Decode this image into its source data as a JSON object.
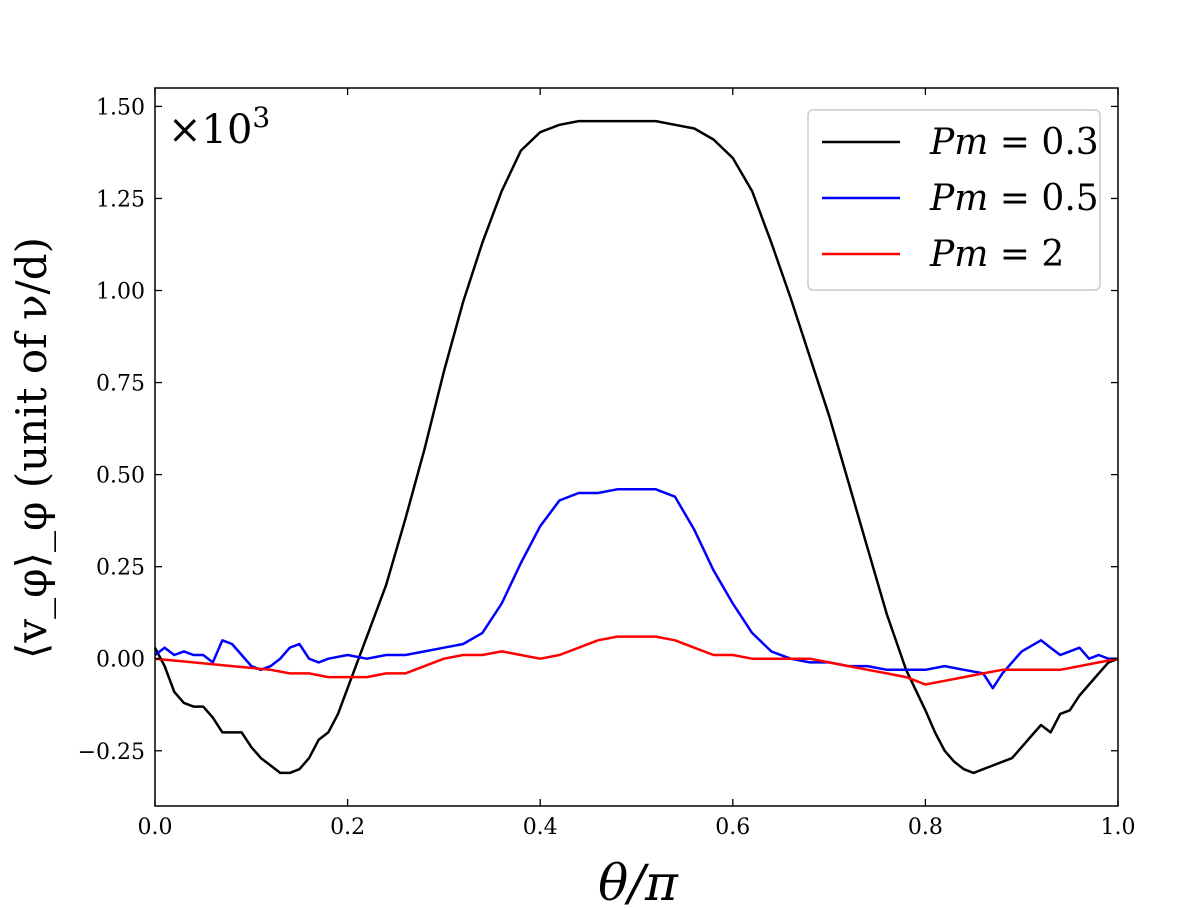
{
  "chart_data": {
    "type": "line",
    "xlabel": "θ/π",
    "ylabel": "⟨v_φ⟩_φ (unit of ν/d)",
    "ylabel_parts": {
      "v": "v",
      "sub_phi": "φ",
      "outer_sub": "φ",
      "text": " (unit of ν/d)"
    },
    "multiplier": "×10",
    "multiplier_exp": "3",
    "xlim": [
      0.0,
      1.0
    ],
    "ylim": [
      -0.4,
      1.55
    ],
    "xticks": [
      0.0,
      0.2,
      0.4,
      0.6,
      0.8,
      1.0
    ],
    "xtick_labels": [
      "0.0",
      "0.2",
      "0.4",
      "0.6",
      "0.8",
      "1.0"
    ],
    "yticks": [
      -0.25,
      0.0,
      0.25,
      0.5,
      0.75,
      1.0,
      1.25,
      1.5
    ],
    "ytick_labels": [
      "−0.25",
      "0.00",
      "0.25",
      "0.50",
      "0.75",
      "1.00",
      "1.25",
      "1.50"
    ],
    "legend_position": "top-right",
    "series": [
      {
        "name": "Pm = 0.3",
        "legend_label": "Pm",
        "legend_value": "0.3",
        "color": "#000000",
        "x": [
          0.0,
          0.01,
          0.02,
          0.03,
          0.04,
          0.05,
          0.06,
          0.07,
          0.08,
          0.09,
          0.1,
          0.11,
          0.12,
          0.13,
          0.14,
          0.15,
          0.16,
          0.17,
          0.18,
          0.19,
          0.2,
          0.21,
          0.22,
          0.24,
          0.26,
          0.28,
          0.3,
          0.32,
          0.34,
          0.36,
          0.38,
          0.4,
          0.42,
          0.44,
          0.46,
          0.48,
          0.5,
          0.52,
          0.54,
          0.56,
          0.58,
          0.6,
          0.62,
          0.64,
          0.66,
          0.68,
          0.7,
          0.72,
          0.74,
          0.76,
          0.78,
          0.8,
          0.81,
          0.82,
          0.83,
          0.84,
          0.85,
          0.86,
          0.87,
          0.88,
          0.89,
          0.9,
          0.91,
          0.92,
          0.93,
          0.94,
          0.95,
          0.96,
          0.97,
          0.98,
          0.99,
          1.0
        ],
        "y": [
          0.03,
          -0.02,
          -0.09,
          -0.12,
          -0.13,
          -0.13,
          -0.16,
          -0.2,
          -0.2,
          -0.2,
          -0.24,
          -0.27,
          -0.29,
          -0.31,
          -0.31,
          -0.3,
          -0.27,
          -0.22,
          -0.2,
          -0.15,
          -0.08,
          -0.01,
          0.06,
          0.2,
          0.38,
          0.57,
          0.78,
          0.97,
          1.13,
          1.27,
          1.38,
          1.43,
          1.45,
          1.46,
          1.46,
          1.46,
          1.46,
          1.46,
          1.45,
          1.44,
          1.41,
          1.36,
          1.27,
          1.13,
          0.98,
          0.82,
          0.66,
          0.48,
          0.3,
          0.12,
          -0.03,
          -0.14,
          -0.2,
          -0.25,
          -0.28,
          -0.3,
          -0.31,
          -0.3,
          -0.29,
          -0.28,
          -0.27,
          -0.24,
          -0.21,
          -0.18,
          -0.2,
          -0.15,
          -0.14,
          -0.1,
          -0.07,
          -0.04,
          -0.01,
          0.0
        ]
      },
      {
        "name": "Pm = 0.5",
        "legend_label": "Pm",
        "legend_value": "0.5",
        "color": "#0000ff",
        "x": [
          0.0,
          0.01,
          0.02,
          0.03,
          0.04,
          0.05,
          0.06,
          0.07,
          0.08,
          0.09,
          0.1,
          0.11,
          0.12,
          0.13,
          0.14,
          0.15,
          0.16,
          0.17,
          0.18,
          0.2,
          0.22,
          0.24,
          0.26,
          0.28,
          0.3,
          0.32,
          0.34,
          0.36,
          0.38,
          0.4,
          0.42,
          0.44,
          0.46,
          0.48,
          0.5,
          0.52,
          0.54,
          0.56,
          0.58,
          0.6,
          0.62,
          0.64,
          0.66,
          0.68,
          0.7,
          0.72,
          0.74,
          0.76,
          0.78,
          0.8,
          0.82,
          0.84,
          0.86,
          0.87,
          0.88,
          0.9,
          0.92,
          0.93,
          0.94,
          0.95,
          0.96,
          0.97,
          0.98,
          0.99,
          1.0
        ],
        "y": [
          0.01,
          0.03,
          0.01,
          0.02,
          0.01,
          0.01,
          -0.01,
          0.05,
          0.04,
          0.01,
          -0.02,
          -0.03,
          -0.02,
          0.0,
          0.03,
          0.04,
          0.0,
          -0.01,
          0.0,
          0.01,
          0.0,
          0.01,
          0.01,
          0.02,
          0.03,
          0.04,
          0.07,
          0.15,
          0.26,
          0.36,
          0.43,
          0.45,
          0.45,
          0.46,
          0.46,
          0.46,
          0.44,
          0.35,
          0.24,
          0.15,
          0.07,
          0.02,
          0.0,
          -0.01,
          -0.01,
          -0.02,
          -0.02,
          -0.03,
          -0.03,
          -0.03,
          -0.02,
          -0.03,
          -0.04,
          -0.08,
          -0.04,
          0.02,
          0.05,
          0.03,
          0.01,
          0.02,
          0.03,
          0.0,
          0.01,
          0.0,
          0.0
        ]
      },
      {
        "name": "Pm = 2",
        "legend_label": "Pm",
        "legend_value": "2",
        "color": "#ff0000",
        "x": [
          0.0,
          0.04,
          0.08,
          0.12,
          0.14,
          0.16,
          0.18,
          0.2,
          0.22,
          0.24,
          0.26,
          0.28,
          0.3,
          0.32,
          0.34,
          0.36,
          0.38,
          0.4,
          0.42,
          0.44,
          0.46,
          0.48,
          0.5,
          0.52,
          0.54,
          0.56,
          0.58,
          0.6,
          0.62,
          0.64,
          0.66,
          0.68,
          0.7,
          0.72,
          0.74,
          0.76,
          0.78,
          0.8,
          0.82,
          0.84,
          0.86,
          0.88,
          0.9,
          0.92,
          0.94,
          0.96,
          0.98,
          1.0
        ],
        "y": [
          0.0,
          -0.01,
          -0.02,
          -0.03,
          -0.04,
          -0.04,
          -0.05,
          -0.05,
          -0.05,
          -0.04,
          -0.04,
          -0.02,
          0.0,
          0.01,
          0.01,
          0.02,
          0.01,
          0.0,
          0.01,
          0.03,
          0.05,
          0.06,
          0.06,
          0.06,
          0.05,
          0.03,
          0.01,
          0.01,
          0.0,
          0.0,
          0.0,
          0.0,
          -0.01,
          -0.02,
          -0.03,
          -0.04,
          -0.05,
          -0.07,
          -0.06,
          -0.05,
          -0.04,
          -0.03,
          -0.03,
          -0.03,
          -0.03,
          -0.02,
          -0.01,
          0.0
        ]
      }
    ]
  }
}
